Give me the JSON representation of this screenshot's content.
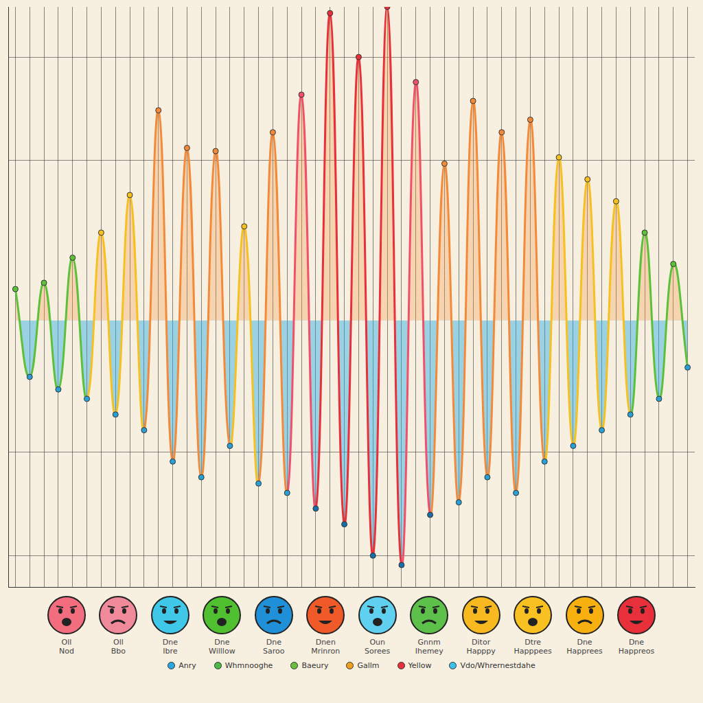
{
  "chart_data": {
    "type": "line",
    "categories": [
      null,
      null,
      null,
      null,
      null,
      null,
      null,
      null,
      null,
      null,
      null,
      null,
      null,
      null,
      null,
      null,
      null,
      null,
      null,
      null,
      null,
      null,
      null,
      null,
      null,
      null,
      null,
      null,
      null,
      null,
      null,
      null,
      null,
      null,
      null,
      null,
      null,
      null,
      null,
      null,
      null,
      null,
      null,
      null,
      null,
      null,
      null,
      null
    ],
    "values": [
      10,
      -18,
      12,
      -22,
      20,
      -25,
      28,
      -30,
      40,
      -35,
      67,
      -45,
      55,
      -50,
      54,
      -40,
      30,
      -52,
      60,
      -55,
      72,
      -60,
      98,
      -65,
      84,
      -75,
      100,
      -78,
      76,
      -62,
      50,
      -58,
      70,
      -50,
      60,
      -55,
      64,
      -45,
      52,
      -40,
      45,
      -35,
      38,
      -30,
      28,
      -25,
      18,
      -15
    ],
    "colors": [
      "#5cc03a",
      "#2a9fd6",
      "#5cc03a",
      "#2a9fd6",
      "#5cc03a",
      "#2a9fd6",
      "#f5c020",
      "#2a9fd6",
      "#f5c020",
      "#2a9fd6",
      "#f28a3a",
      "#2a9fd6",
      "#f28a3a",
      "#2a9fd6",
      "#f28a3a",
      "#2a9fd6",
      "#f5c020",
      "#2a9fd6",
      "#f28a3a",
      "#2a9fd6",
      "#f0506a",
      "#1a6fa8",
      "#e8303a",
      "#1a6fa8",
      "#e8303a",
      "#1a6fa8",
      "#e8303a",
      "#1a6fa8",
      "#f0506a",
      "#1a6fa8",
      "#f28a3a",
      "#2a9fd6",
      "#f28a3a",
      "#2a9fd6",
      "#f28a3a",
      "#2a9fd6",
      "#f28a3a",
      "#2a9fd6",
      "#f5c020",
      "#2a9fd6",
      "#f5c020",
      "#2a9fd6",
      "#f5c020",
      "#2a9fd6",
      "#5cc03a",
      "#2a9fd6",
      "#5cc03a",
      "#2a9fd6"
    ],
    "ylim": [
      -85,
      100
    ],
    "yticks": [
      -75,
      -42,
      51,
      84
    ],
    "grid": true,
    "tick_labels": false,
    "face_labels": [
      {
        "text": "Oll Nod",
        "color": "#f26d7d"
      },
      {
        "text": "Oll Bbo",
        "color": "#f08a9a"
      },
      {
        "text": "Dne Ibre",
        "color": "#40c8e8"
      },
      {
        "text": "Dne Willlow",
        "color": "#50c030"
      },
      {
        "text": "Dne Saroo",
        "color": "#2090d8"
      },
      {
        "text": "Dnen Mrinron",
        "color": "#f05a28"
      },
      {
        "text": "Oun Sorees",
        "color": "#60d0f0"
      },
      {
        "text": "Gnnm Ihemey",
        "color": "#5cc04a"
      },
      {
        "text": "Ditor Happpy",
        "color": "#f8b820"
      },
      {
        "text": "Dtre Happpees",
        "color": "#f8c020"
      },
      {
        "text": "Dne Happrees",
        "color": "#f8b010"
      },
      {
        "text": "Dne Happreos",
        "color": "#e8303a"
      }
    ],
    "key": [
      {
        "text": "Anry",
        "color": "#2aa7e0"
      },
      {
        "text": "Whmnooghe",
        "color": "#4cb848"
      },
      {
        "text": "Baeury",
        "color": "#6abf3c"
      },
      {
        "text": "Gallm",
        "color": "#f0a020"
      },
      {
        "text": "Yellow",
        "color": "#e8303a"
      },
      {
        "text": "Vdo/Whrernestdahe",
        "color": "#3fc0e8"
      }
    ]
  }
}
